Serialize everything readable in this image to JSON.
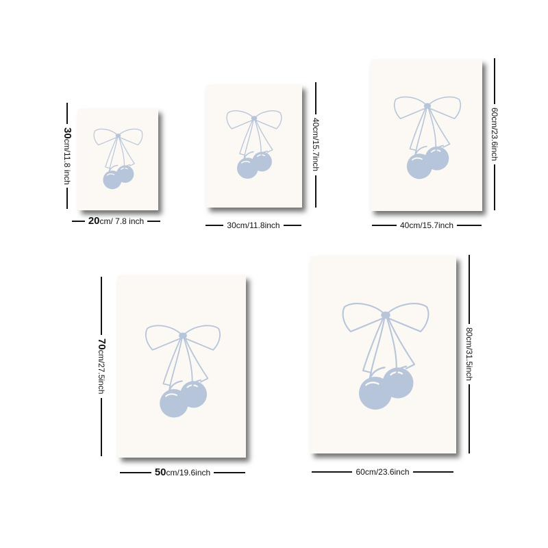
{
  "colors": {
    "background": "#ffffff",
    "poster": "#fcf9f5",
    "art": "#b7c5da",
    "dimension_line": "#111111"
  },
  "artwork": {
    "motif": "bow-and-cherries-icon"
  },
  "sizes": [
    {
      "width": {
        "cm": "20",
        "rest": "cm/ 7.8 inch"
      },
      "height": {
        "cm": "30",
        "rest": "cm/11.8 inch"
      }
    },
    {
      "width": {
        "cm": "",
        "rest": "30cm/11.8inch"
      },
      "height": {
        "cm": "",
        "rest": "40cm/15.7inch"
      }
    },
    {
      "width": {
        "cm": "",
        "rest": "40cm/15.7inch"
      },
      "height": {
        "cm": "",
        "rest": "60cm/23.6inch"
      }
    },
    {
      "width": {
        "cm": "50",
        "rest": "cm/19.6inch"
      },
      "height": {
        "cm": "70",
        "rest": "cm/27.5inch"
      }
    },
    {
      "width": {
        "cm": "",
        "rest": "60cm/23.6inch"
      },
      "height": {
        "cm": "",
        "rest": "80cm/31.5inch"
      }
    }
  ]
}
